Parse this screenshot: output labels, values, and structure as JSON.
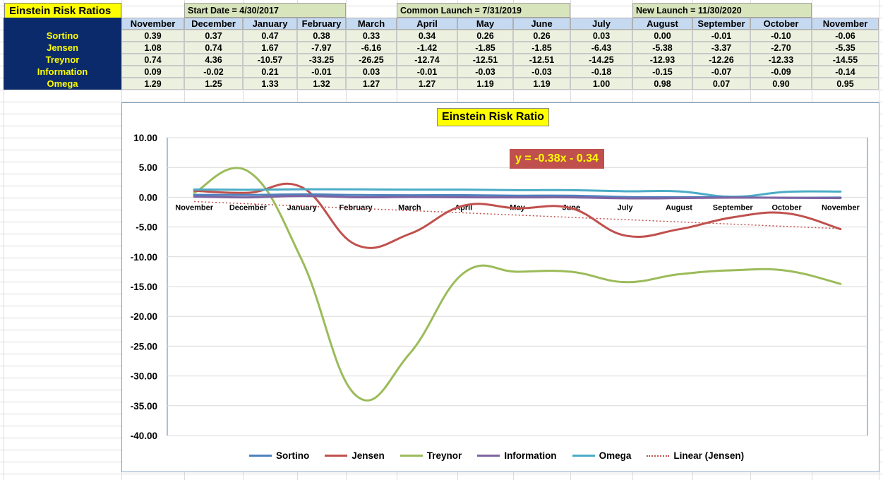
{
  "sheet": {
    "title": "Einstein Risk Ratios",
    "banners": {
      "start": "Start Date = 4/30/2017",
      "common": "Common Launch = 7/31/2019",
      "new": "New Launch = 11/30/2020"
    },
    "months": [
      "November",
      "December",
      "January",
      "February",
      "March",
      "April",
      "May",
      "June",
      "July",
      "August",
      "September",
      "October",
      "November"
    ],
    "rows": [
      {
        "label": "Sortino",
        "values": [
          "0.39",
          "0.37",
          "0.47",
          "0.38",
          "0.33",
          "0.34",
          "0.26",
          "0.26",
          "0.03",
          "0.00",
          "-0.01",
          "-0.10",
          "-0.06"
        ]
      },
      {
        "label": "Jensen",
        "values": [
          "1.08",
          "0.74",
          "1.67",
          "-7.97",
          "-6.16",
          "-1.42",
          "-1.85",
          "-1.85",
          "-6.43",
          "-5.38",
          "-3.37",
          "-2.70",
          "-5.35"
        ]
      },
      {
        "label": "Treynor",
        "values": [
          "0.74",
          "4.36",
          "-10.57",
          "-33.25",
          "-26.25",
          "-12.74",
          "-12.51",
          "-12.51",
          "-14.25",
          "-12.93",
          "-12.26",
          "-12.33",
          "-14.55"
        ]
      },
      {
        "label": "Information",
        "values": [
          "0.09",
          "-0.02",
          "0.21",
          "-0.01",
          "0.03",
          "-0.01",
          "-0.03",
          "-0.03",
          "-0.18",
          "-0.15",
          "-0.07",
          "-0.09",
          "-0.14"
        ]
      },
      {
        "label": "Omega",
        "values": [
          "1.29",
          "1.25",
          "1.33",
          "1.32",
          "1.27",
          "1.27",
          "1.19",
          "1.19",
          "1.00",
          "0.98",
          "0.07",
          "0.90",
          "0.95"
        ]
      }
    ]
  },
  "chart_data": {
    "type": "line",
    "title": "Einstein Risk Ratio",
    "categories": [
      "November",
      "December",
      "January",
      "February",
      "March",
      "April",
      "May",
      "June",
      "July",
      "August",
      "September",
      "October",
      "November"
    ],
    "ylim": [
      -40,
      10
    ],
    "yticks": [
      "10.00",
      "5.00",
      "0.00",
      "-5.00",
      "-10.00",
      "-15.00",
      "-20.00",
      "-25.00",
      "-30.00",
      "-35.00",
      "-40.00"
    ],
    "grid": true,
    "legend_position": "bottom",
    "trendline_label": "y = -0.38x - 0.34",
    "series": [
      {
        "name": "Sortino",
        "color": "#4f81bd",
        "values": [
          0.39,
          0.37,
          0.47,
          0.38,
          0.33,
          0.34,
          0.26,
          0.26,
          0.03,
          0.0,
          -0.01,
          -0.1,
          -0.06
        ]
      },
      {
        "name": "Jensen",
        "color": "#c0504d",
        "values": [
          1.08,
          0.74,
          1.67,
          -7.97,
          -6.16,
          -1.42,
          -1.85,
          -1.85,
          -6.43,
          -5.38,
          -3.37,
          -2.7,
          -5.35
        ]
      },
      {
        "name": "Treynor",
        "color": "#9bbb59",
        "values": [
          0.74,
          4.36,
          -10.57,
          -33.25,
          -26.25,
          -12.74,
          -12.51,
          -12.51,
          -14.25,
          -12.93,
          -12.26,
          -12.33,
          -14.55
        ]
      },
      {
        "name": "Information",
        "color": "#8064a2",
        "values": [
          0.09,
          -0.02,
          0.21,
          -0.01,
          0.03,
          -0.01,
          -0.03,
          -0.03,
          -0.18,
          -0.15,
          -0.07,
          -0.09,
          -0.14
        ]
      },
      {
        "name": "Omega",
        "color": "#4bacc6",
        "values": [
          1.29,
          1.25,
          1.33,
          1.32,
          1.27,
          1.27,
          1.19,
          1.19,
          1.0,
          0.98,
          0.07,
          0.9,
          0.95
        ]
      }
    ],
    "trendline": {
      "name": "Linear (Jensen)",
      "color": "#c0504d",
      "slope": -0.38,
      "intercept": -0.34
    }
  }
}
